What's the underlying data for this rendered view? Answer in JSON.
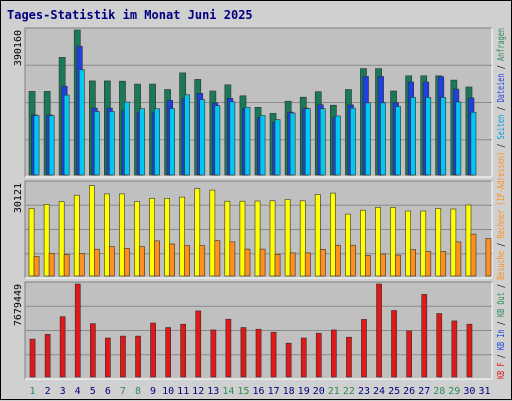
{
  "chart_data": {
    "type": "bar",
    "title": "Tages-Statistik im Monat Juni 2025",
    "days": [
      "1",
      "2",
      "3",
      "4",
      "5",
      "6",
      "7",
      "8",
      "9",
      "10",
      "11",
      "12",
      "13",
      "14",
      "15",
      "16",
      "17",
      "18",
      "19",
      "20",
      "21",
      "22",
      "23",
      "24",
      "25",
      "26",
      "27",
      "28",
      "29",
      "30",
      "31"
    ],
    "day_label_colors": [
      "#2e8b57",
      "#000080",
      "#000080",
      "#000080",
      "#000080",
      "#000080",
      "#2e8b57",
      "#2e8b57",
      "#000080",
      "#000080",
      "#000080",
      "#000080",
      "#000080",
      "#2e8b57",
      "#2e8b57",
      "#000080",
      "#000080",
      "#000080",
      "#000080",
      "#000080",
      "#2e8b57",
      "#2e8b57",
      "#000080",
      "#000080",
      "#000080",
      "#000080",
      "#000080",
      "#2e8b57",
      "#2e8b57",
      "#000080",
      "#000080"
    ],
    "panels": [
      {
        "ymax_label": "390160",
        "ymax": 390160,
        "series": [
          {
            "name": "Anfragen",
            "color": "#1a7a56",
            "values": [
              225030,
              225030,
              316720,
              390160,
              253330,
              253330,
              252360,
              244530,
              244530,
              229930,
              274720,
              257160,
              226000,
              242580,
              213090,
              182090,
              165630,
              198540,
              209260,
              224080,
              187750,
              229930,
              286350,
              286350,
              226000,
              266890,
              266890,
              266890,
              255390,
              236740,
              0
            ]
          },
          {
            "name": "Dateien",
            "color": "#1e40e0",
            "values": [
              161760,
              161760,
              238890,
              346680,
              180120,
              180120,
              173150,
              168480,
              168480,
              201020,
              205620,
              219880,
              193900,
              206450,
              179120,
              154160,
              141620,
              169370,
              180120,
              189030,
              155950,
              188750,
              265000,
              265000,
              194840,
              250300,
              250300,
              264460,
              231230,
              207540,
              0
            ]
          },
          {
            "name": "Seiten",
            "color": "#00c8f0",
            "values": [
              160160,
              159890,
              214950,
              283050,
              170860,
              170860,
              196390,
              178460,
              178460,
              178460,
              215850,
              202520,
              186450,
              197070,
              182220,
              159980,
              149150,
              166950,
              178460,
              178460,
              158760,
              179620,
              194220,
              194220,
              184320,
              208820,
              208820,
              208820,
              196390,
              169000,
              0
            ]
          }
        ]
      },
      {
        "ymax_label": "30121",
        "ymax": 30121,
        "series": [
          {
            "name": "Rechner (IP-Adressen)",
            "color": "#ffff00",
            "values": [
              21900,
              23230,
              24100,
              26160,
              29310,
              26600,
              26600,
              24120,
              25140,
              25140,
              25540,
              28290,
              27810,
              24240,
              24240,
              24280,
              24360,
              24800,
              24360,
              26410,
              26860,
              20040,
              21310,
              22230,
              22230,
              21050,
              21050,
              21850,
              21700,
              22980,
              0
            ]
          },
          {
            "name": "Besuche",
            "color": "#ff9020",
            "values": [
              6350,
              7330,
              6990,
              7290,
              8670,
              9480,
              8950,
              9500,
              11380,
              10370,
              9810,
              9810,
              11440,
              11030,
              8710,
              8710,
              7010,
              7470,
              7470,
              8650,
              9980,
              9980,
              6660,
              7110,
              6760,
              8540,
              7940,
              7940,
              11040,
              13580,
              12150
            ]
          }
        ]
      },
      {
        "ymax_label": "7679449",
        "ymax": 7679449,
        "series": [
          {
            "name": "KB F",
            "color": "#e01818",
            "values": [
              3130000,
              3530000,
              4980000,
              7679449,
              4410000,
              3220000,
              3380000,
              3380000,
              4460000,
              4090000,
              4360000,
              5460000,
              3890000,
              4770000,
              4090000,
              3950000,
              3700000,
              2790000,
              3220000,
              3620000,
              3890000,
              3290000,
              4760000,
              7679449,
              5490000,
              3810000,
              6820000,
              5240000,
              4630000,
              4360000,
              0
            ]
          },
          {
            "name": "KB In",
            "color": "#1e40e0",
            "values": []
          },
          {
            "name": "KB Out",
            "color": "#1a7a56",
            "values": []
          }
        ]
      }
    ],
    "legend": [
      "Anfragen",
      "Dateien",
      "Seiten",
      "Rechner (IP-Adressen)",
      "Besuche",
      "KB F",
      "KB In",
      "KB Out"
    ],
    "legend_colors": [
      "#2e8b57",
      "#1e40e0",
      "#00a0d0",
      "#ff9020",
      "#ff9020",
      "#e01818",
      "#1e40e0",
      "#2e8b57"
    ]
  }
}
